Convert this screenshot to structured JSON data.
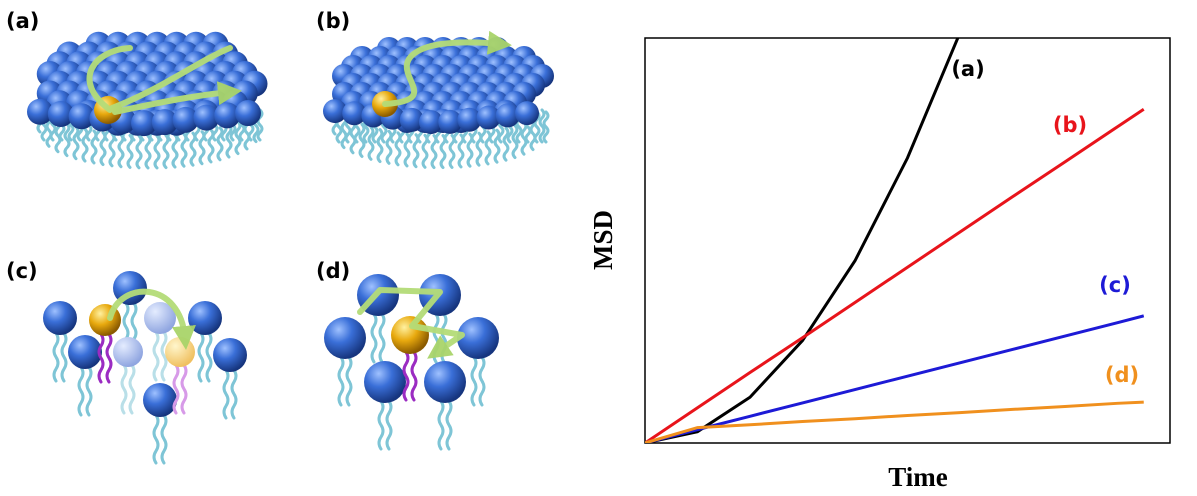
{
  "panels": [
    "(a)",
    "(b)",
    "(c)",
    "(d)"
  ],
  "chart_data": {
    "type": "line",
    "x_label": "Time",
    "y_label": "MSD",
    "x": [
      0,
      1,
      2,
      3,
      4,
      5,
      6,
      7,
      8,
      9,
      9.5
    ],
    "xlim": [
      0,
      10
    ],
    "ylim": [
      0,
      10
    ],
    "series": [
      {
        "name": "(a)",
        "color": "#000000",
        "values": [
          0,
          0.28,
          1.13,
          2.53,
          4.5,
          7.04,
          10.13,
          null,
          null,
          null,
          null
        ]
      },
      {
        "name": "(b)",
        "color": "#e8141b",
        "values": [
          0,
          0.87,
          1.74,
          2.6,
          3.47,
          4.34,
          5.21,
          6.08,
          6.94,
          7.81,
          8.24
        ]
      },
      {
        "name": "(c)",
        "color": "#1d1ad6",
        "values": [
          0,
          0.33,
          0.66,
          0.99,
          1.32,
          1.65,
          1.98,
          2.31,
          2.64,
          2.97,
          3.14
        ]
      },
      {
        "name": "(d)",
        "color": "#f0901e",
        "values": [
          0,
          0.38,
          0.45,
          0.53,
          0.6,
          0.68,
          0.75,
          0.83,
          0.9,
          0.98,
          1.01
        ]
      }
    ]
  }
}
